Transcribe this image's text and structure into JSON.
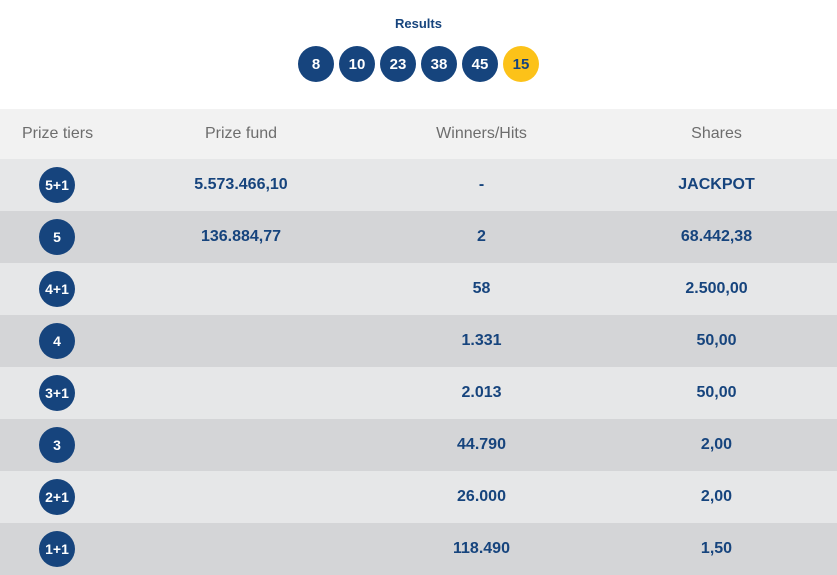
{
  "results": {
    "title": "Results",
    "numbers": [
      "8",
      "10",
      "23",
      "38",
      "45"
    ],
    "bonus": "15",
    "colors": {
      "ball": "#16447d",
      "bonus_ball": "#fcc219"
    }
  },
  "table": {
    "headers": {
      "tiers": "Prize tiers",
      "fund": "Prize fund",
      "winners": "Winners/Hits",
      "shares": "Shares"
    },
    "rows": [
      {
        "tier": "5+1",
        "fund": "5.573.466,10",
        "winners": "-",
        "shares": "JACKPOT"
      },
      {
        "tier": "5",
        "fund": "136.884,77",
        "winners": "2",
        "shares": "68.442,38"
      },
      {
        "tier": "4+1",
        "fund": "",
        "winners": "58",
        "shares": "2.500,00"
      },
      {
        "tier": "4",
        "fund": "",
        "winners": "1.331",
        "shares": "50,00"
      },
      {
        "tier": "3+1",
        "fund": "",
        "winners": "2.013",
        "shares": "50,00"
      },
      {
        "tier": "3",
        "fund": "",
        "winners": "44.790",
        "shares": "2,00"
      },
      {
        "tier": "2+1",
        "fund": "",
        "winners": "26.000",
        "shares": "2,00"
      },
      {
        "tier": "1+1",
        "fund": "",
        "winners": "118.490",
        "shares": "1,50"
      }
    ]
  }
}
